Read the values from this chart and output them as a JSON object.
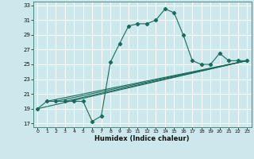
{
  "bg_color": "#cce8ec",
  "grid_color": "#ffffff",
  "line_color": "#1a6b5a",
  "xlabel": "Humidex (Indice chaleur)",
  "xlim": [
    -0.5,
    23.5
  ],
  "ylim": [
    16.5,
    33.5
  ],
  "xticks": [
    0,
    1,
    2,
    3,
    4,
    5,
    6,
    7,
    8,
    9,
    10,
    11,
    12,
    13,
    14,
    15,
    16,
    17,
    18,
    19,
    20,
    21,
    22,
    23
  ],
  "yticks": [
    17,
    19,
    21,
    23,
    25,
    27,
    29,
    31,
    33
  ],
  "line1_x": [
    0,
    1,
    2,
    3,
    4,
    5,
    6,
    7,
    8,
    9,
    10,
    11,
    12,
    13,
    14,
    15,
    16,
    17,
    18,
    19,
    20,
    21,
    22,
    23
  ],
  "line1_y": [
    19,
    20.0,
    20.0,
    20.0,
    20.0,
    20.0,
    17.3,
    18.0,
    25.3,
    27.8,
    30.2,
    30.5,
    30.5,
    31.0,
    32.5,
    32.0,
    29.0,
    25.5,
    25.0,
    25.0,
    26.5,
    25.5,
    25.5,
    25.5
  ],
  "line2_x": [
    0,
    23
  ],
  "line2_y": [
    19.0,
    25.5
  ],
  "line3_x": [
    1,
    23
  ],
  "line3_y": [
    20.0,
    25.5
  ],
  "line4_x": [
    2,
    23
  ],
  "line4_y": [
    20.0,
    25.5
  ],
  "line5_x": [
    3,
    23
  ],
  "line5_y": [
    20.0,
    25.5
  ]
}
